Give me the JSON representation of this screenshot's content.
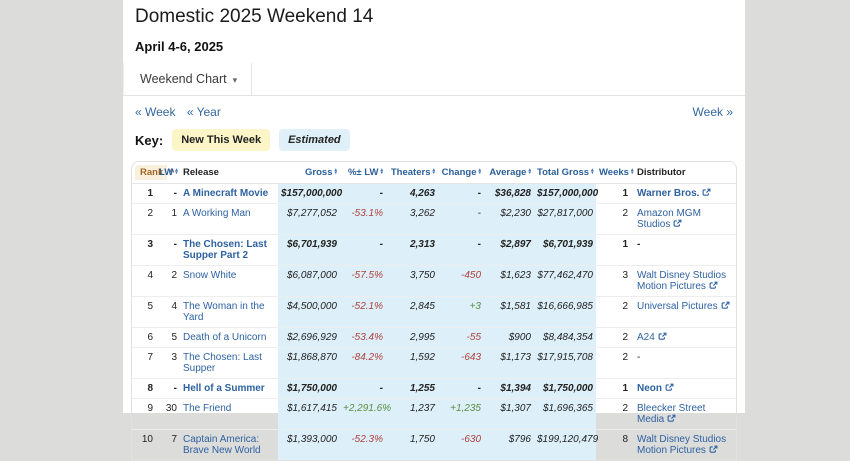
{
  "page": {
    "title": "Domestic 2025 Weekend 14",
    "date_range": "April 4-6, 2025",
    "tab": {
      "label": "Weekend Chart"
    },
    "nav": {
      "prev_week": "« Week",
      "prev_year": "« Year",
      "next_week": "Week »"
    },
    "key": {
      "label": "Key:",
      "new_this_week": "New This Week",
      "estimated": "Estimated"
    }
  },
  "colors": {
    "page_background": "#dcdcdb",
    "link_blue": "#2e62a0",
    "estimated_bg": "#ddeff8",
    "new_this_week_bg": "#fbf5c8",
    "negative": "#b0423f",
    "positive": "#5b8e44",
    "sorted_header_text": "#a5661f",
    "sorted_header_bg": "#f9f1dd"
  },
  "icons": {
    "chevron_down": "▾",
    "sort_ascending": "^",
    "sort_updown": "▴▾",
    "external_link": "box-with-arrow"
  },
  "table": {
    "headers": [
      {
        "id": "rank",
        "label": "Rank",
        "sortable": true,
        "sorted": true
      },
      {
        "id": "lw",
        "label": "LW",
        "sortable": true,
        "sorted": false
      },
      {
        "id": "release",
        "label": "Release",
        "sortable": false,
        "sorted": false
      },
      {
        "id": "gross",
        "label": "Gross",
        "sortable": true,
        "sorted": false
      },
      {
        "id": "pct_lw",
        "label": "%± LW",
        "sortable": true,
        "sorted": false
      },
      {
        "id": "theaters",
        "label": "Theaters",
        "sortable": true,
        "sorted": false
      },
      {
        "id": "change",
        "label": "Change",
        "sortable": true,
        "sorted": false
      },
      {
        "id": "average",
        "label": "Average",
        "sortable": true,
        "sorted": false
      },
      {
        "id": "total_gross",
        "label": "Total Gross",
        "sortable": true,
        "sorted": false
      },
      {
        "id": "weeks",
        "label": "Weeks",
        "sortable": true,
        "sorted": false
      },
      {
        "id": "distributor",
        "label": "Distributor",
        "sortable": false,
        "sorted": false
      }
    ],
    "rows": [
      {
        "rank": "1",
        "lw": "-",
        "release": "A Minecraft Movie",
        "gross": "$157,000,000",
        "pct_lw": "-",
        "theaters": "4,263",
        "change": "-",
        "average": "$36,828",
        "total_gross": "$157,000,000",
        "weeks": "1",
        "distributor": "Warner Bros.",
        "distributor_link": true,
        "new_this_week": true
      },
      {
        "rank": "2",
        "lw": "1",
        "release": "A Working Man",
        "gross": "$7,277,052",
        "pct_lw": "-53.1%",
        "theaters": "3,262",
        "change": "-",
        "average": "$2,230",
        "total_gross": "$27,817,000",
        "weeks": "2",
        "distributor": "Amazon MGM Studios",
        "distributor_link": true,
        "new_this_week": false
      },
      {
        "rank": "3",
        "lw": "-",
        "release": "The Chosen: Last Supper Part 2",
        "gross": "$6,701,939",
        "pct_lw": "-",
        "theaters": "2,313",
        "change": "-",
        "average": "$2,897",
        "total_gross": "$6,701,939",
        "weeks": "1",
        "distributor": "-",
        "distributor_link": false,
        "new_this_week": true
      },
      {
        "rank": "4",
        "lw": "2",
        "release": "Snow White",
        "gross": "$6,087,000",
        "pct_lw": "-57.5%",
        "theaters": "3,750",
        "change": "-450",
        "average": "$1,623",
        "total_gross": "$77,462,470",
        "weeks": "3",
        "distributor": "Walt Disney Studios Motion Pictures",
        "distributor_link": true,
        "new_this_week": false
      },
      {
        "rank": "5",
        "lw": "4",
        "release": "The Woman in the Yard",
        "gross": "$4,500,000",
        "pct_lw": "-52.1%",
        "theaters": "2,845",
        "change": "+3",
        "average": "$1,581",
        "total_gross": "$16,666,985",
        "weeks": "2",
        "distributor": "Universal Pictures",
        "distributor_link": true,
        "new_this_week": false
      },
      {
        "rank": "6",
        "lw": "5",
        "release": "Death of a Unicorn",
        "gross": "$2,696,929",
        "pct_lw": "-53.4%",
        "theaters": "2,995",
        "change": "-55",
        "average": "$900",
        "total_gross": "$8,484,354",
        "weeks": "2",
        "distributor": "A24",
        "distributor_link": true,
        "new_this_week": false
      },
      {
        "rank": "7",
        "lw": "3",
        "release": "The Chosen: Last Supper",
        "gross": "$1,868,870",
        "pct_lw": "-84.2%",
        "theaters": "1,592",
        "change": "-643",
        "average": "$1,173",
        "total_gross": "$17,915,708",
        "weeks": "2",
        "distributor": "-",
        "distributor_link": false,
        "new_this_week": false
      },
      {
        "rank": "8",
        "lw": "-",
        "release": "Hell of a Summer",
        "gross": "$1,750,000",
        "pct_lw": "-",
        "theaters": "1,255",
        "change": "-",
        "average": "$1,394",
        "total_gross": "$1,750,000",
        "weeks": "1",
        "distributor": "Neon",
        "distributor_link": true,
        "new_this_week": true
      },
      {
        "rank": "9",
        "lw": "30",
        "release": "The Friend",
        "gross": "$1,617,415",
        "pct_lw": "+2,291.6%",
        "theaters": "1,237",
        "change": "+1,235",
        "average": "$1,307",
        "total_gross": "$1,696,365",
        "weeks": "2",
        "distributor": "Bleecker Street Media",
        "distributor_link": true,
        "new_this_week": false
      },
      {
        "rank": "10",
        "lw": "7",
        "release": "Captain America: Brave New World",
        "gross": "$1,393,000",
        "pct_lw": "-52.3%",
        "theaters": "1,750",
        "change": "-630",
        "average": "$796",
        "total_gross": "$199,120,479",
        "weeks": "8",
        "distributor": "Walt Disney Studios Motion Pictures",
        "distributor_link": true,
        "new_this_week": false
      }
    ]
  }
}
